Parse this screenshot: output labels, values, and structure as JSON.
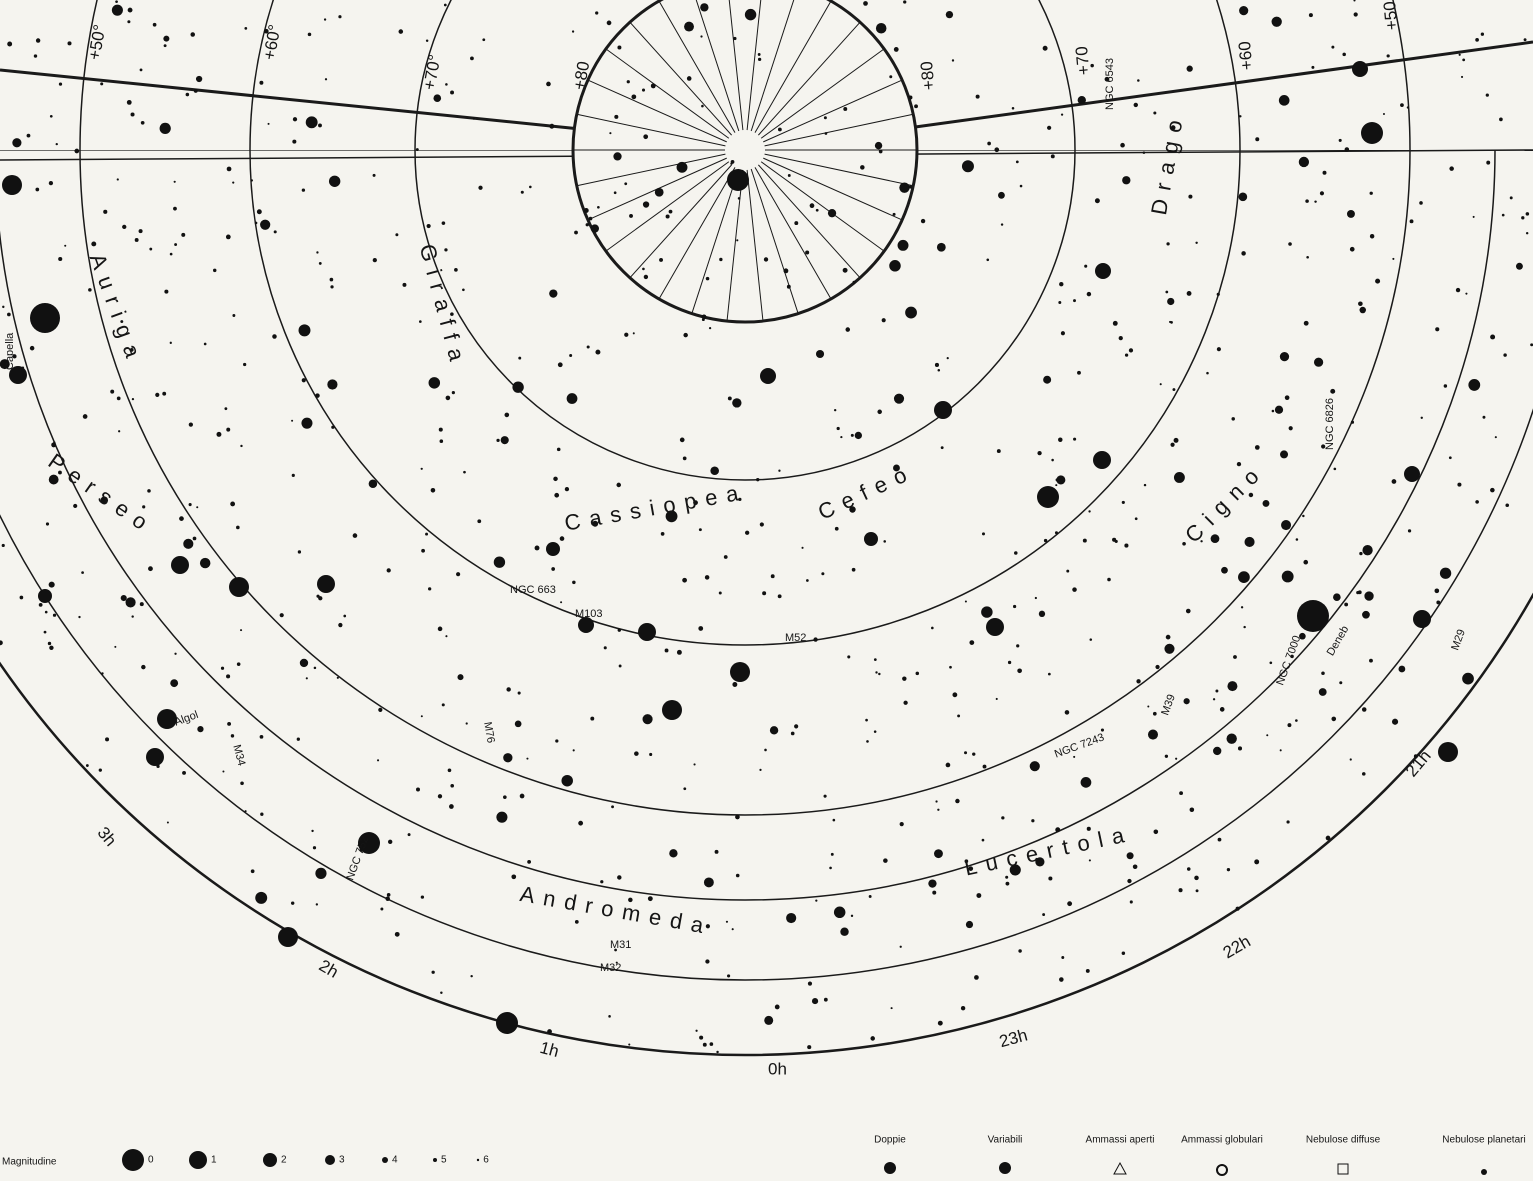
{
  "map": {
    "declination_labels": [
      "+50°",
      "+60°",
      "+70°",
      "+80",
      "+80",
      "+70",
      "+60",
      "+50"
    ],
    "ra_labels": [
      "0h",
      "1h",
      "2h",
      "3h",
      "23h",
      "22h",
      "21h"
    ],
    "constellations": [
      "Auriga",
      "Perseo",
      "Giraffa",
      "Cassiopea",
      "Cefeo",
      "Drago",
      "Cigno",
      "Lucertola",
      "Andromeda"
    ],
    "objects": [
      "M31",
      "M32",
      "M103",
      "NGC 663",
      "M76",
      "M34",
      "Algol",
      "NGC 752",
      "NGC 7243",
      "M39",
      "NGC 7000",
      "Deneb",
      "M29",
      "M52",
      "NGC 6543",
      "NGC 6826",
      "Capella"
    ],
    "legend": {
      "title": "Magnitudine",
      "magnitudes": [
        "0",
        "1",
        "2",
        "3",
        "4",
        "5",
        "6"
      ],
      "symbols": [
        "Doppie",
        "Variabili",
        "Ammassi aperti",
        "Ammassi globulari",
        "Nebulose diffuse",
        "Nebulose planetari"
      ]
    }
  }
}
